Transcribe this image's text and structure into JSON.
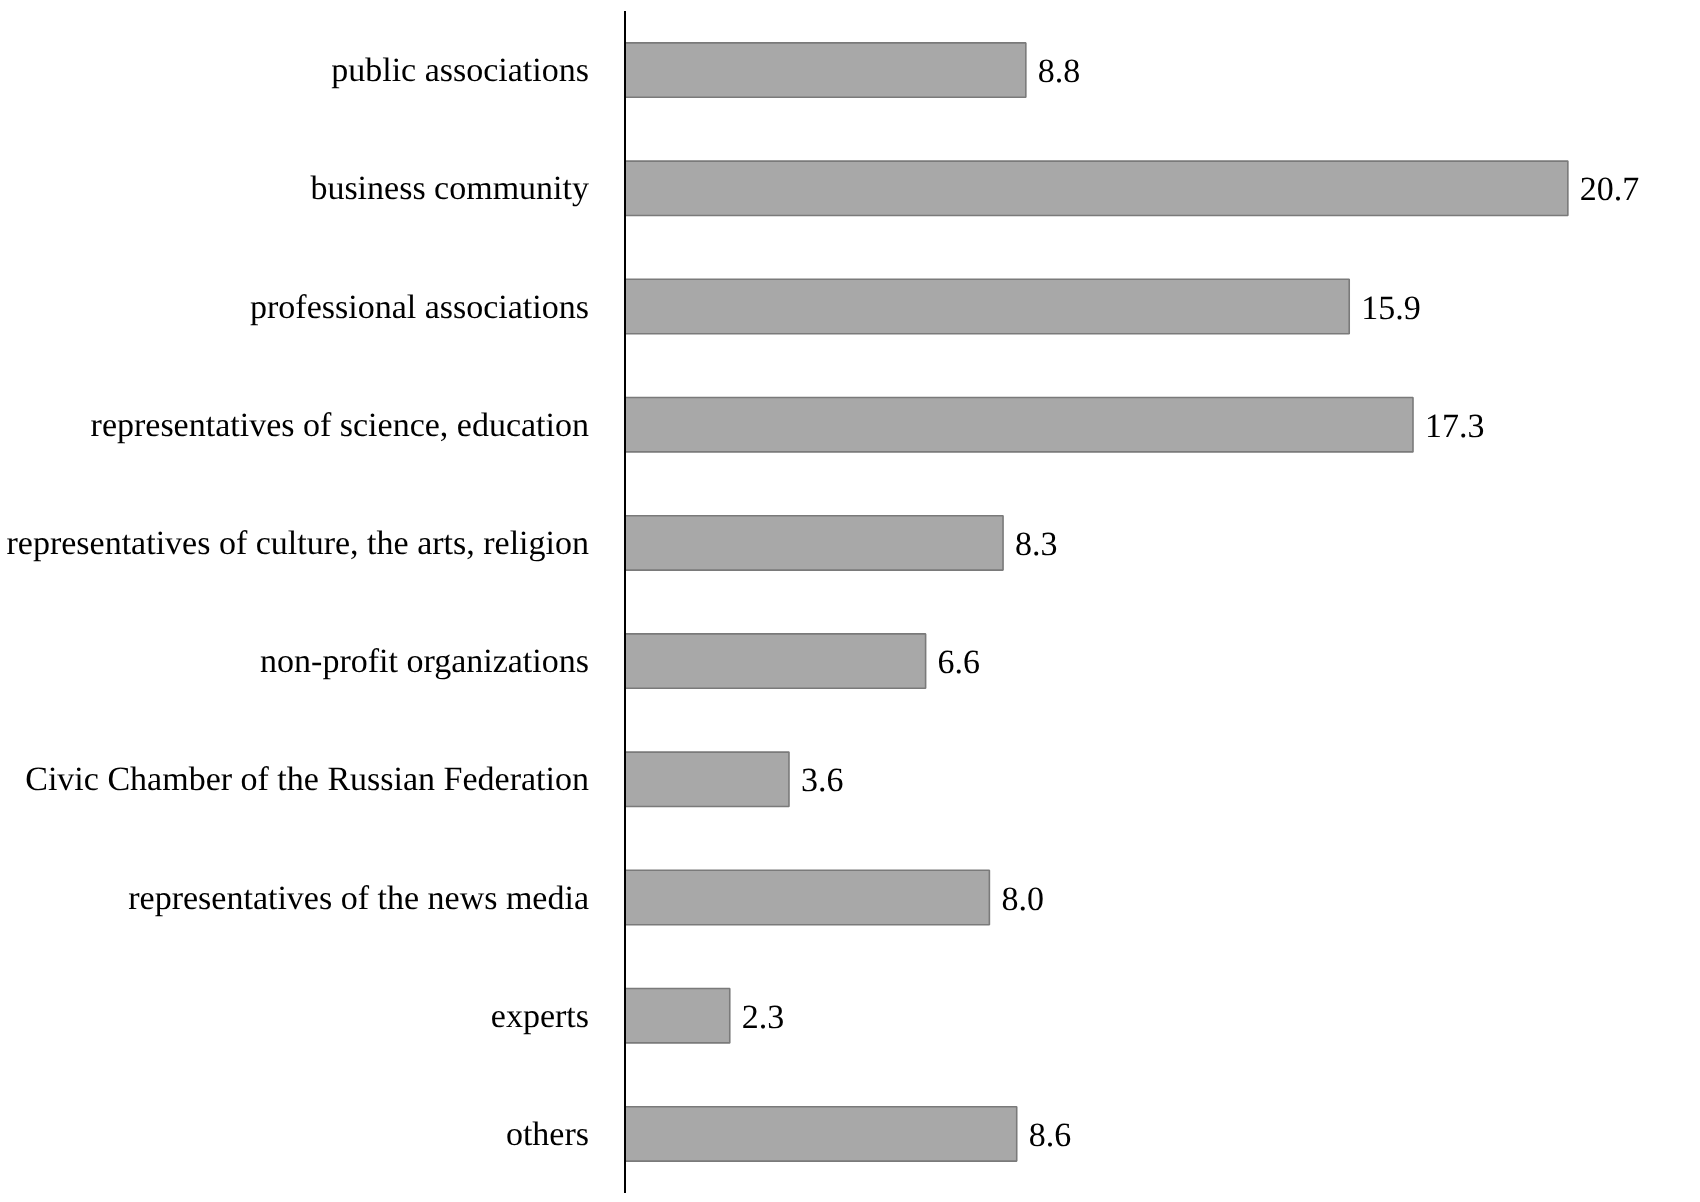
{
  "chart_data": {
    "type": "bar",
    "orientation": "horizontal",
    "categories": [
      "public associations",
      "business community",
      "professional associations",
      "representatives of science, education",
      "representatives of culture, the arts, religion",
      "non-profit organizations",
      "Civic Chamber of the Russian Federation",
      "representatives of the news media",
      "experts",
      "others"
    ],
    "values": [
      8.8,
      20.7,
      15.9,
      17.3,
      8.3,
      6.6,
      3.6,
      8.0,
      2.3,
      8.6
    ],
    "value_labels": [
      "8.8",
      "20.7",
      "15.9",
      "17.3",
      "8.3",
      "6.6",
      "3.6",
      "8.0",
      "2.3",
      "8.6"
    ],
    "color": "#a8a8a8"
  }
}
